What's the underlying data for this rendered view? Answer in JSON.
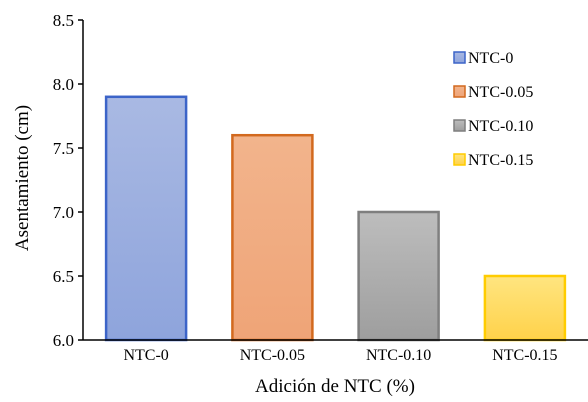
{
  "chart_data": {
    "type": "bar",
    "categories": [
      "NTC-0",
      "NTC-0.05",
      "NTC-0.10",
      "NTC-0.15"
    ],
    "values": [
      7.9,
      7.6,
      7.0,
      6.5
    ],
    "xlabel": "Adición de NTC (%)",
    "ylabel": "Asentamiento  (cm)",
    "ylim": [
      6.0,
      8.5
    ],
    "yticks": [
      6.0,
      6.5,
      7.0,
      7.5,
      8.0,
      8.5
    ],
    "ytick_labels": [
      "6.0",
      "6.5",
      "7.0",
      "7.5",
      "8.0",
      "8.5"
    ],
    "grid": false,
    "legend_position": "top-right",
    "legend": [
      "NTC-0",
      "NTC-0.05",
      "NTC-0.10",
      "NTC-0.15"
    ],
    "colors": {
      "fill_top": [
        "#a9b9e3",
        "#f2b48c",
        "#bdbdbd",
        "#ffe580"
      ],
      "fill_bottom": [
        "#8ea4dc",
        "#efa477",
        "#9e9e9e",
        "#ffd24a"
      ],
      "stroke": [
        "#3c64c8",
        "#d2691e",
        "#7f7f7f",
        "#ffcc00"
      ]
    }
  }
}
